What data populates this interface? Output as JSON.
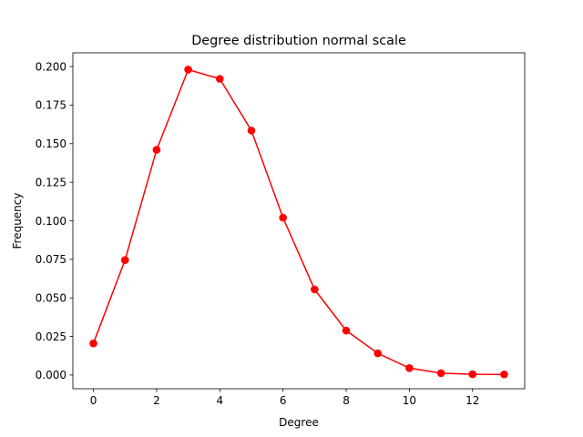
{
  "chart_data": {
    "type": "line",
    "title": "Degree distribution normal scale",
    "xlabel": "Degree",
    "ylabel": "Frequency",
    "xlim": [
      -0.65,
      13.65
    ],
    "ylim": [
      -0.0089,
      0.2089
    ],
    "xticks": [
      0,
      2,
      4,
      6,
      8,
      10,
      12
    ],
    "yticks": [
      0.0,
      0.025,
      0.05,
      0.075,
      0.1,
      0.125,
      0.15,
      0.175,
      0.2
    ],
    "grid": false,
    "legend": "none",
    "series": [
      {
        "color": "#ff0000",
        "marker": "circle",
        "x": [
          0,
          1,
          2,
          3,
          4,
          5,
          6,
          7,
          8,
          9,
          10,
          11,
          12,
          13
        ],
        "y": [
          0.0205,
          0.0745,
          0.146,
          0.198,
          0.192,
          0.1585,
          0.102,
          0.0555,
          0.0288,
          0.0141,
          0.0045,
          0.0012,
          0.0005,
          0.0004
        ]
      }
    ]
  }
}
